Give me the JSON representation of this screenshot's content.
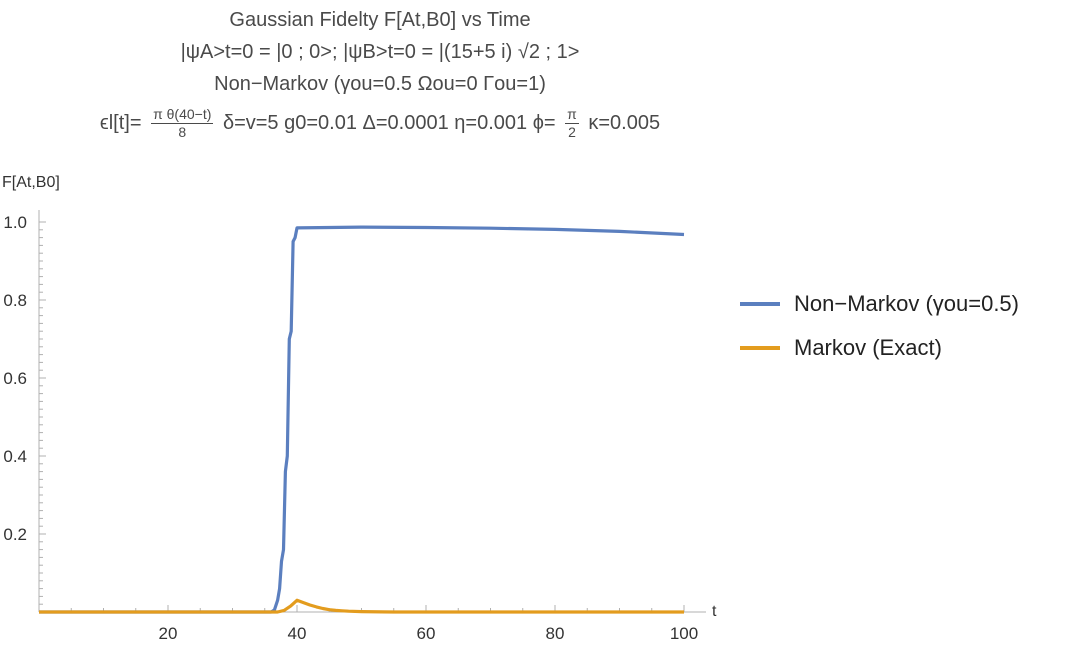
{
  "title": {
    "line1": "Gaussian Fidelty F[At,B0] vs Time",
    "line2": "|ψA>t=0 = |0 ; 0>; |ψB>t=0 = |(15+5 i) √2 ; 1>",
    "line3": "Non−Markov (γou=0.5  Ωou=0 Γou=1)",
    "line4_lhs": "ϵl[t]=",
    "line4_frac_num": "π θ(40−t)",
    "line4_frac_den": "8",
    "line4_mid": "δ=v=5 g0=0.01 Δ=0.0001 η=0.001 ϕ=",
    "line4_pi_num": "π",
    "line4_pi_den": "2",
    "line4_rhs": "κ=0.005"
  },
  "colors": {
    "non_markov": "#5b7fbf",
    "markov": "#e39c1e",
    "axis": "#b0b0b0"
  },
  "chart_data": {
    "type": "line",
    "title": "Gaussian Fidelty F[At,B0] vs Time",
    "xlabel": "t",
    "ylabel": "F[At,B0]",
    "xlim": [
      0,
      100
    ],
    "ylim": [
      0,
      1.0
    ],
    "x_ticks": [
      20,
      40,
      60,
      80,
      100
    ],
    "y_ticks": [
      0.2,
      0.4,
      0.6,
      0.8,
      1.0
    ],
    "x_tick_labels": [
      "20",
      "40",
      "60",
      "80",
      "100"
    ],
    "y_tick_labels": [
      "0.2",
      "0.4",
      "0.6",
      "0.8",
      "1.0"
    ],
    "grid": false,
    "legend_position": "right",
    "series": [
      {
        "name": "Non−Markov (γou=0.5)",
        "color": "#5b7fbf",
        "x": [
          0,
          10,
          20,
          30,
          35,
          36,
          36.5,
          37,
          37.3,
          37.6,
          37.9,
          38.2,
          38.5,
          38.8,
          39.1,
          39.4,
          39.7,
          40,
          45,
          50,
          60,
          70,
          80,
          90,
          100
        ],
        "y": [
          0,
          0,
          0,
          0,
          0,
          0,
          0.005,
          0.03,
          0.06,
          0.13,
          0.16,
          0.36,
          0.4,
          0.7,
          0.72,
          0.95,
          0.96,
          0.985,
          0.986,
          0.987,
          0.986,
          0.984,
          0.981,
          0.976,
          0.968
        ]
      },
      {
        "name": "Markov (Exact)",
        "color": "#e39c1e",
        "x": [
          0,
          10,
          20,
          30,
          35,
          37,
          38,
          39,
          40,
          41,
          42,
          43,
          44,
          45,
          46,
          47,
          48,
          50,
          55,
          60,
          70,
          80,
          90,
          100
        ],
        "y": [
          0,
          0,
          0,
          0,
          0,
          0,
          0.004,
          0.015,
          0.03,
          0.024,
          0.018,
          0.013,
          0.009,
          0.006,
          0.004,
          0.003,
          0.002,
          0.001,
          0,
          0,
          0,
          0,
          0,
          0
        ]
      }
    ]
  }
}
